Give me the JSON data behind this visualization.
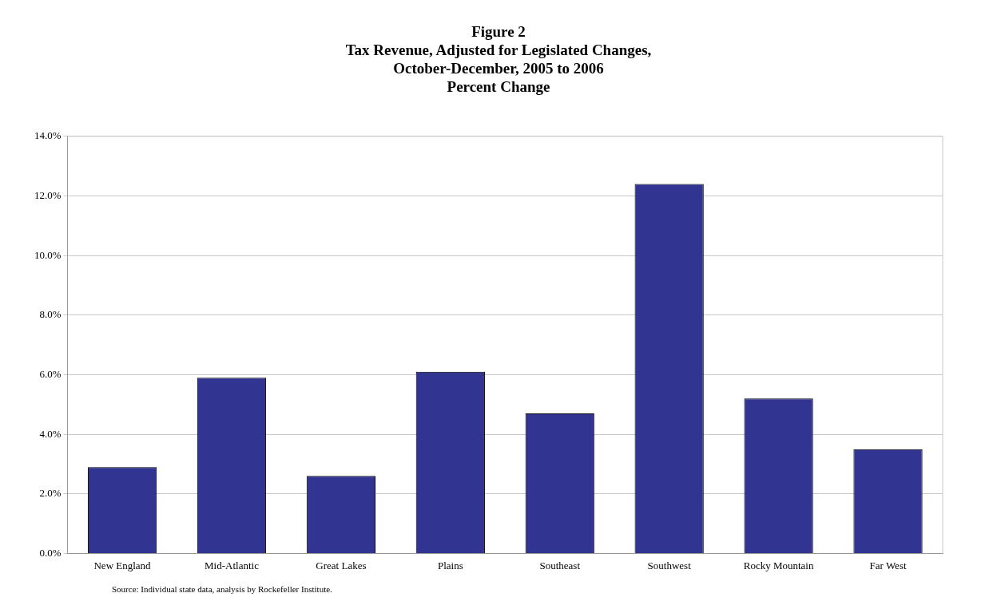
{
  "chart_data": {
    "type": "bar",
    "title": "Figure 2\nTax Revenue, Adjusted for Legislated Changes,\nOctober-December, 2005 to 2006\nPercent Change",
    "categories": [
      "New England",
      "Mid-Atlantic",
      "Great Lakes",
      "Plains",
      "Southeast",
      "Southwest",
      "Rocky Mountain",
      "Far West"
    ],
    "values": [
      2.9,
      5.9,
      2.6,
      6.1,
      4.7,
      12.4,
      5.2,
      3.5
    ],
    "color": "#313591",
    "ylim": [
      0,
      14
    ],
    "yticks": [
      {
        "value": 0,
        "label": "0.0%"
      },
      {
        "value": 2,
        "label": "2.0%"
      },
      {
        "value": 4,
        "label": "4.0%"
      },
      {
        "value": 6,
        "label": "6.0%"
      },
      {
        "value": 8,
        "label": "8.0%"
      },
      {
        "value": 10,
        "label": "10.0%"
      },
      {
        "value": 12,
        "label": "12.0%"
      },
      {
        "value": 14,
        "label": "14.0%"
      }
    ],
    "grid": "y",
    "annotations": [
      "Source: Individual state data, analysis by Rockefeller Institute."
    ]
  }
}
